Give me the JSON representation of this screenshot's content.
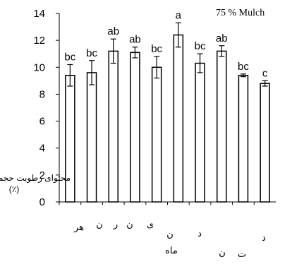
{
  "chart_data": {
    "type": "bar",
    "title": "",
    "annotation": "75 % Mulch",
    "xlabel": "ماه",
    "ylabel": "محتوای رطوبت حجمی خاک",
    "ylabel_unit": "(٪)",
    "ylim": [
      0,
      14
    ],
    "yticks": [
      0,
      2,
      4,
      6,
      8,
      10,
      12,
      14
    ],
    "categories": [
      "مهر",
      "آبان",
      "آذر",
      "دی",
      "بهمن",
      "اسفند",
      "فروردین",
      "اردیبهشت",
      "خرداد",
      "تیر"
    ],
    "visible_category_labels": [
      "هر",
      "ن",
      "ر",
      "ن",
      "ی",
      "ن",
      "د",
      "ن",
      "ت",
      "د"
    ],
    "values": [
      9.4,
      9.6,
      11.2,
      11.1,
      10.0,
      12.4,
      10.3,
      11.2,
      9.4,
      8.8
    ],
    "errors": [
      0.8,
      0.9,
      0.9,
      0.4,
      0.8,
      0.9,
      0.7,
      0.4,
      0.1,
      0.2
    ],
    "letters": [
      "bc",
      "bc",
      "ab",
      "ab",
      "bc",
      "a",
      "bc",
      "ab",
      "bc",
      "c"
    ],
    "grid": false,
    "colors": {
      "bar_fill": "#ffffff",
      "bar_stroke": "#000000",
      "axis": "#000000"
    }
  }
}
